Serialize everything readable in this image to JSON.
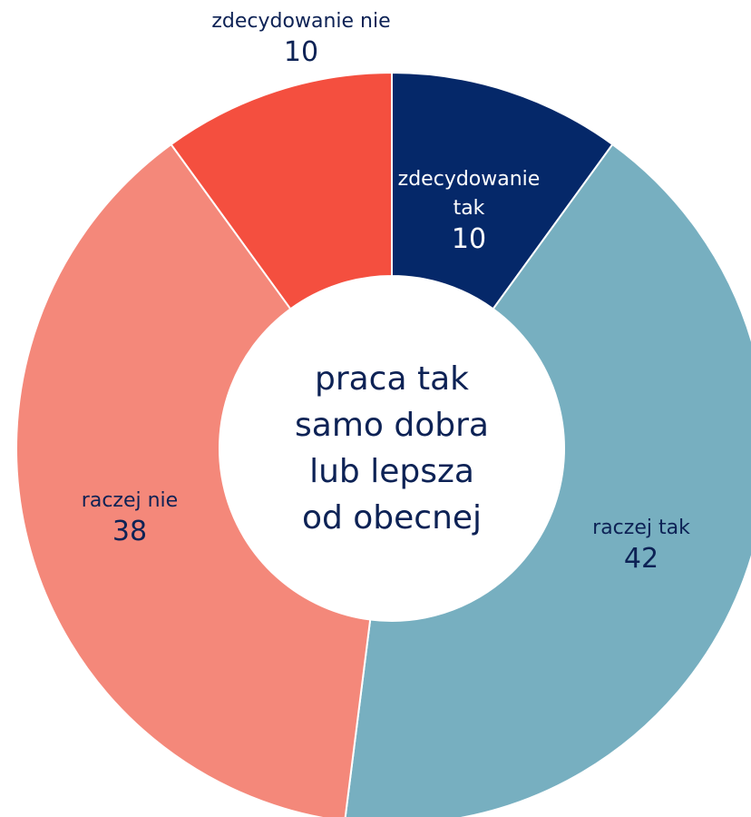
{
  "chart_data": {
    "type": "donut",
    "center_label": [
      "praca tak",
      "samo dobra",
      "lub lepsza",
      "od obecnej"
    ],
    "categories": [
      "zdecydowanie tak",
      "raczej tak",
      "raczej nie",
      "zdecydowanie nie"
    ],
    "values": [
      10,
      42,
      38,
      10
    ],
    "colors": [
      "#052869",
      "#77afc0",
      "#f4887a",
      "#f44f3f"
    ]
  }
}
